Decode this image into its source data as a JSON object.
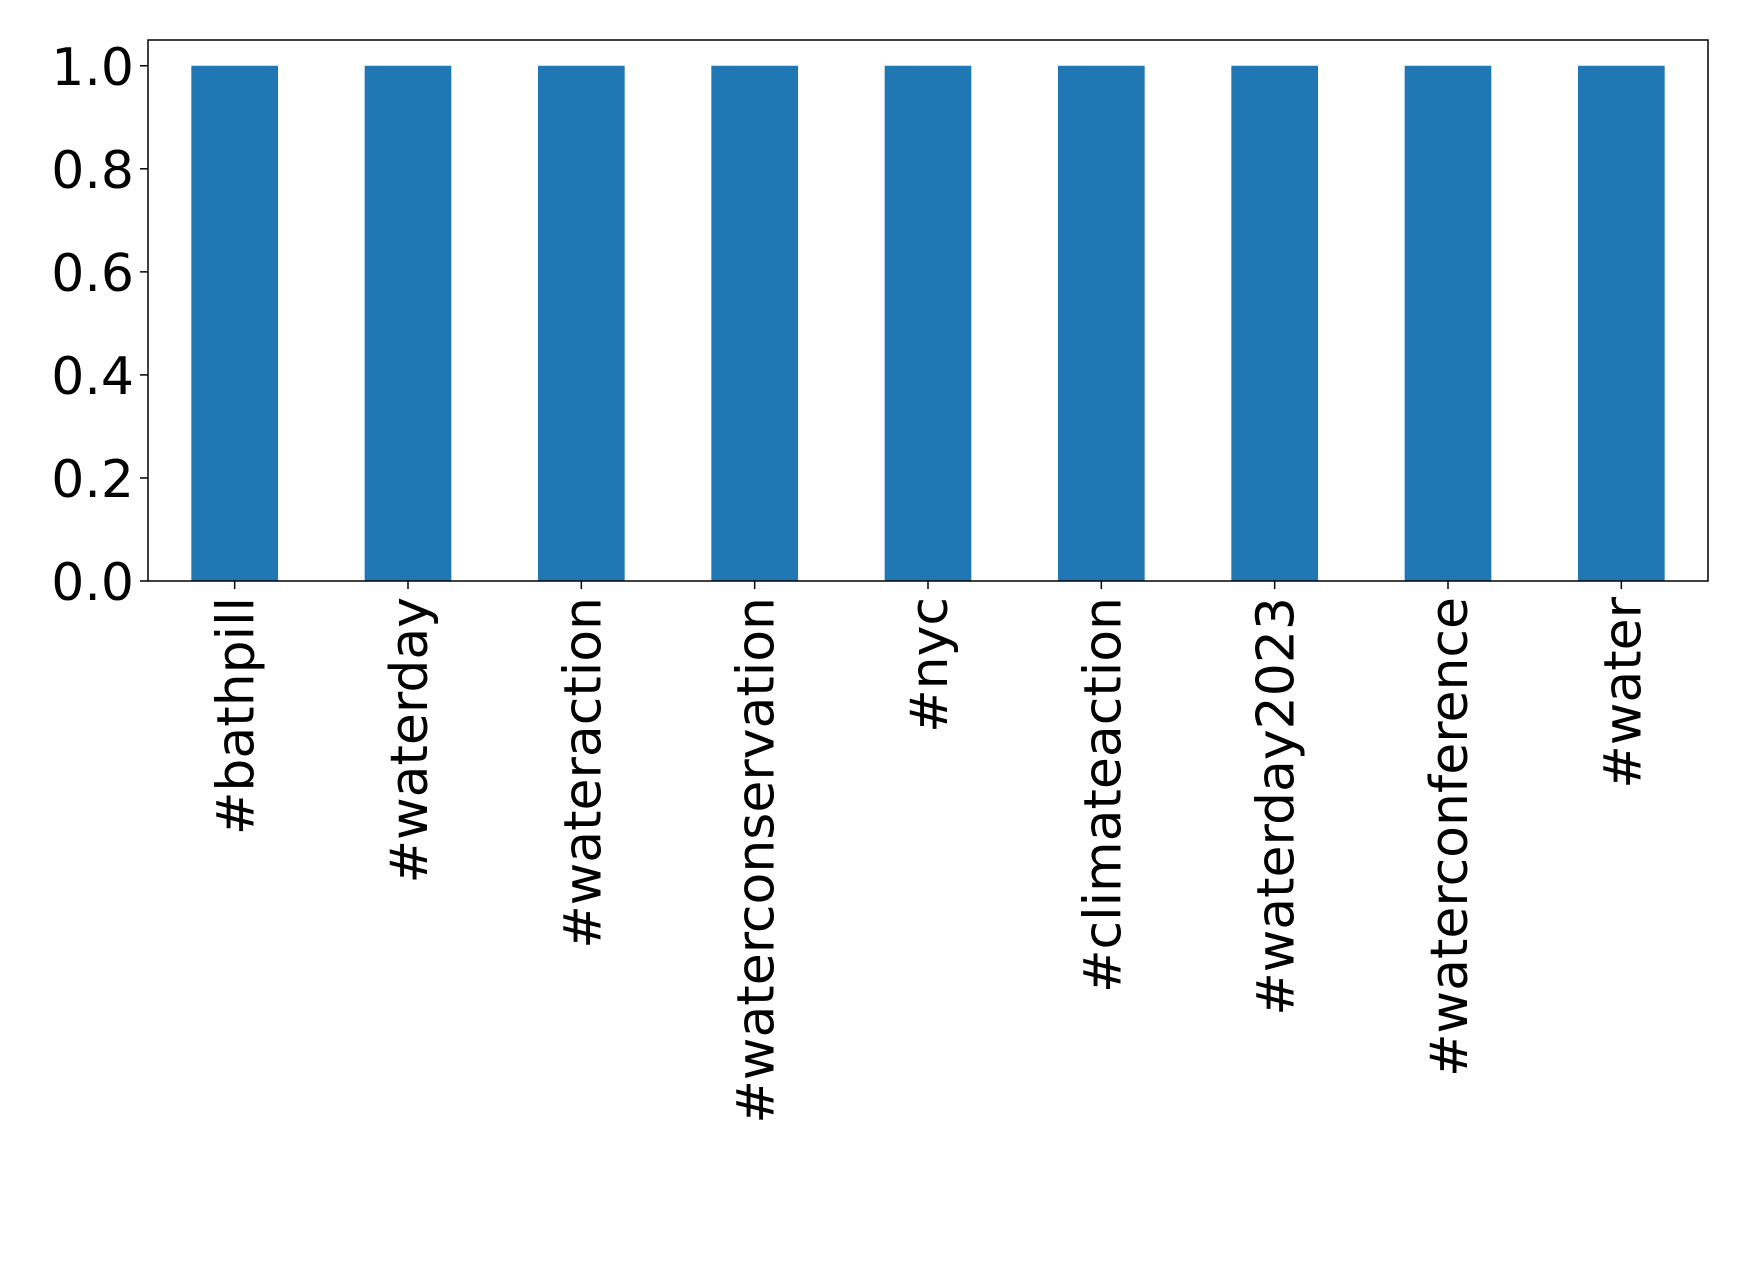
{
  "chart_data": {
    "type": "bar",
    "categories": [
      "#bathpill",
      "#waterday",
      "#wateraction",
      "#waterconservation",
      "#nyc",
      "#climateaction",
      "#waterday2023",
      "#waterconference",
      "#water"
    ],
    "values": [
      1,
      1,
      1,
      1,
      1,
      1,
      1,
      1,
      1
    ],
    "color": "#1f77b4",
    "ylim": [
      0,
      1.05
    ],
    "yticks": [
      {
        "value": 0,
        "label": "0.0"
      },
      0.2,
      0.4,
      0.6,
      0.8,
      {
        "value": 1,
        "label": "1.0"
      }
    ],
    "grid": false
  }
}
